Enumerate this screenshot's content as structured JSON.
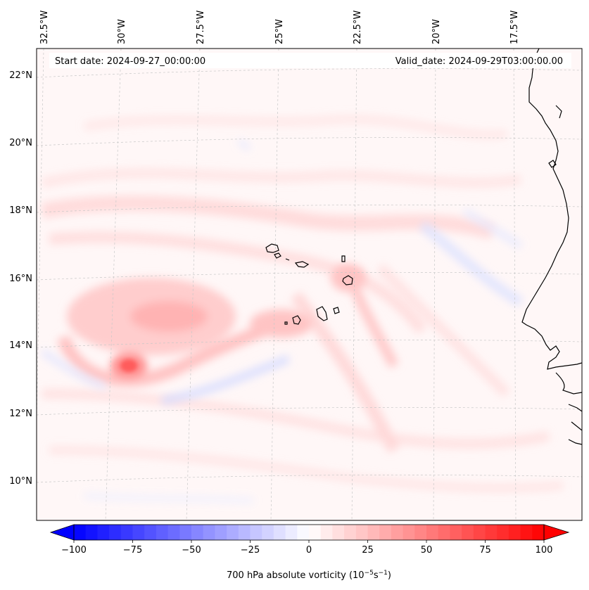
{
  "header": {
    "start_date": "Start date: 2024-09-27_00:00:00",
    "valid_date": "Valid_date: 2024-09-29T03:00:00.00"
  },
  "map": {
    "projection": "lambert-conformal",
    "gridlines": "dashed-light-gray",
    "lon_labels": [
      "32.5°W",
      "30°W",
      "27.5°W",
      "25°W",
      "22.5°W",
      "20°W",
      "17.5°W"
    ],
    "lat_labels": [
      "22°N",
      "20°N",
      "18°N",
      "16°N",
      "14°N",
      "12°N",
      "10°N"
    ],
    "features": [
      "west-african-coastline",
      "cape-verde-islands"
    ],
    "field": "700 hPa absolute vorticity",
    "colormap": "bwr",
    "max_feature": "vorticity-maximum near 30°W 13.5°N"
  },
  "colorbar": {
    "ticks": [
      "−100",
      "−75",
      "−50",
      "−25",
      "0",
      "25",
      "50",
      "75",
      "100"
    ],
    "range": [
      -100,
      100
    ],
    "label_prefix": "700 hPa absolute vorticity (10",
    "label_exp1": "−5",
    "label_mid": "s",
    "label_exp2": "−1",
    "label_suffix": ")",
    "neg_color": "#0000ff",
    "mid_color": "#ffffff",
    "pos_color": "#ff0000"
  }
}
